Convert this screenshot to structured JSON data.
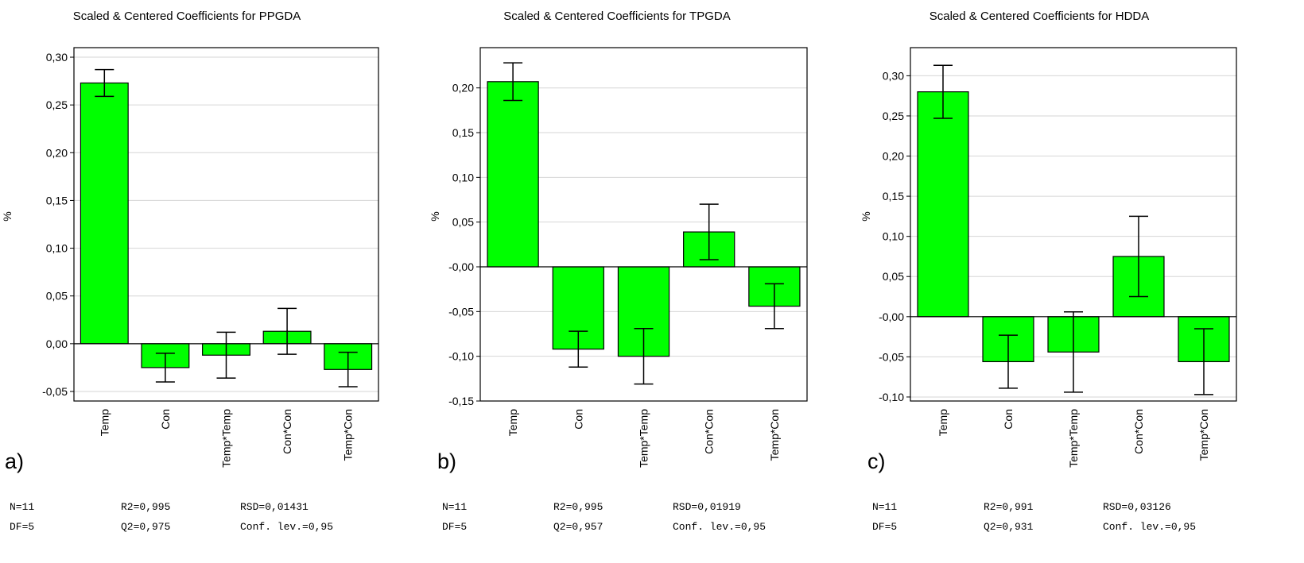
{
  "chart_data": [
    {
      "type": "bar",
      "panel_label": "a)",
      "title": "Scaled & Centered Coefficients for PPGDA",
      "ylabel": "%",
      "xlabel": "",
      "ylim": [
        -0.06,
        0.31
      ],
      "yticks": [
        -0.05,
        0.0,
        0.05,
        0.1,
        0.15,
        0.2,
        0.25,
        0.3
      ],
      "ytick_labels": [
        "-0,05",
        "0,00",
        "0,05",
        "0,10",
        "0,15",
        "0,20",
        "0,25",
        "0,30"
      ],
      "categories": [
        "Temp",
        "Con",
        "Temp*Temp",
        "Con*Con",
        "Temp*Con"
      ],
      "values": [
        0.273,
        -0.025,
        -0.012,
        0.013,
        -0.027
      ],
      "errors": [
        0.014,
        0.015,
        0.024,
        0.024,
        0.018
      ],
      "bar_color": "#00ff00",
      "stats": {
        "n": "N=11",
        "df": "DF=5",
        "r2": "R2=0,995",
        "q2": "Q2=0,975",
        "rsd": "RSD=0,01431",
        "conf": "Conf. lev.=0,95"
      }
    },
    {
      "type": "bar",
      "panel_label": "b)",
      "title": "Scaled & Centered Coefficients for TPGDA",
      "ylabel": "%",
      "xlabel": "",
      "ylim": [
        -0.15,
        0.245
      ],
      "yticks": [
        -0.15,
        -0.1,
        -0.05,
        0.0,
        0.05,
        0.1,
        0.15,
        0.2
      ],
      "ytick_labels": [
        "-0,15",
        "-0,10",
        "-0,05",
        "-0,00",
        "0,05",
        "0,10",
        "0,15",
        "0,20"
      ],
      "categories": [
        "Temp",
        "Con",
        "Temp*Temp",
        "Con*Con",
        "Temp*Con"
      ],
      "values": [
        0.207,
        -0.092,
        -0.1,
        0.039,
        -0.044
      ],
      "errors": [
        0.021,
        0.02,
        0.031,
        0.031,
        0.025
      ],
      "bar_color": "#00ff00",
      "stats": {
        "n": "N=11",
        "df": "DF=5",
        "r2": "R2=0,995",
        "q2": "Q2=0,957",
        "rsd": "RSD=0,01919",
        "conf": "Conf. lev.=0,95"
      }
    },
    {
      "type": "bar",
      "panel_label": "c)",
      "title": "Scaled & Centered Coefficients for HDDA",
      "ylabel": "%",
      "xlabel": "",
      "ylim": [
        -0.105,
        0.335
      ],
      "yticks": [
        -0.1,
        -0.05,
        0.0,
        0.05,
        0.1,
        0.15,
        0.2,
        0.25,
        0.3
      ],
      "ytick_labels": [
        "-0,10",
        "-0,05",
        "-0,00",
        "0,05",
        "0,10",
        "0,15",
        "0,20",
        "0,25",
        "0,30"
      ],
      "categories": [
        "Temp",
        "Con",
        "Temp*Temp",
        "Con*Con",
        "Temp*Con"
      ],
      "values": [
        0.28,
        -0.056,
        -0.044,
        0.075,
        -0.056
      ],
      "errors": [
        0.033,
        0.033,
        0.05,
        0.05,
        0.041
      ],
      "bar_color": "#00ff00",
      "stats": {
        "n": "N=11",
        "df": "DF=5",
        "r2": "R2=0,991",
        "q2": "Q2=0,931",
        "rsd": "RSD=0,03126",
        "conf": "Conf. lev.=0,95"
      }
    }
  ]
}
